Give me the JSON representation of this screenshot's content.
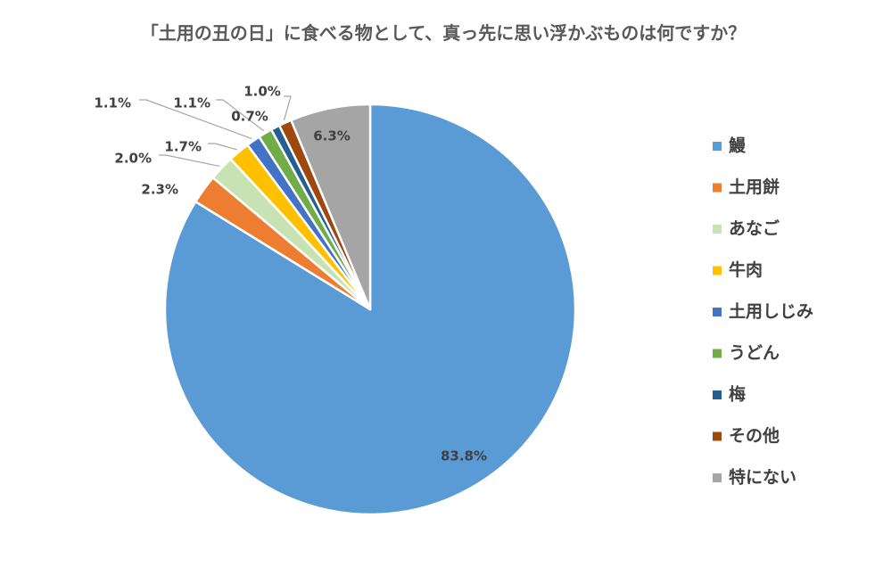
{
  "chart_data": {
    "type": "pie",
    "title": "「土用の丑の日」に食べる物として、真っ先に思い浮かぶものは何ですか？",
    "slices": [
      {
        "label": "鰻",
        "value": 83.8,
        "display": "83.8%",
        "color": "#5B9BD5"
      },
      {
        "label": "土用餅",
        "value": 2.3,
        "display": "2.3%",
        "color": "#ED7D31"
      },
      {
        "label": "あなご",
        "value": 2.0,
        "display": "2.0%",
        "color": "#C9E2B3"
      },
      {
        "label": "牛肉",
        "value": 1.7,
        "display": "1.7%",
        "color": "#FFC000"
      },
      {
        "label": "土用しじみ",
        "value": 1.1,
        "display": "1.1%",
        "color": "#4472C4"
      },
      {
        "label": "うどん",
        "value": 1.1,
        "display": "1.1%",
        "color": "#70AD47"
      },
      {
        "label": "梅",
        "value": 0.7,
        "display": "0.7%",
        "color": "#255E91"
      },
      {
        "label": "その他",
        "value": 1.0,
        "display": "1.0%",
        "color": "#9E480E"
      },
      {
        "label": "特にない",
        "value": 6.3,
        "display": "6.3%",
        "color": "#A5A5A5"
      }
    ],
    "legend": "right"
  }
}
